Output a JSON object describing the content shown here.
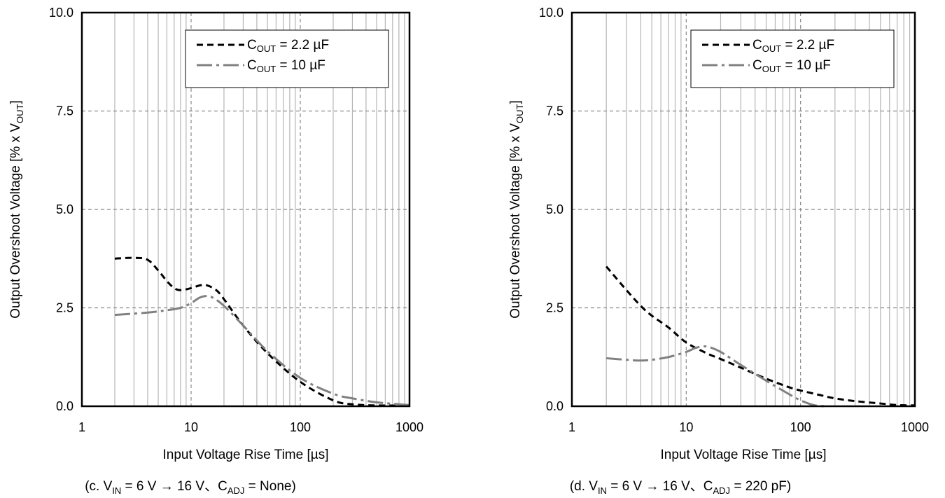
{
  "chart_data": [
    {
      "type": "line",
      "xscale": "log",
      "xlim": [
        1,
        1000
      ],
      "ylim": [
        0.0,
        10.0
      ],
      "xticks": [
        "1",
        "10",
        "100",
        "1000"
      ],
      "yticks": [
        "0.0",
        "2.5",
        "5.0",
        "7.5",
        "10.0"
      ],
      "xlabel": "Input Voltage Rise Time [µs]",
      "ylabel": {
        "main": "Output Overshoot Voltage [% x V",
        "sub": "OUT",
        "end": "]"
      },
      "caption": {
        "t1": "(c. V",
        "s1": "IN",
        "t2": " = 6 V → 16 V、C",
        "s2": "ADJ",
        "t3": " = None)"
      },
      "grid": "on",
      "legend_position": "top-right",
      "series": [
        {
          "name": {
            "main": "C",
            "sub": "OUT",
            "rest": " =  2.2  µF"
          },
          "style": "dash",
          "color": "#000000",
          "x": [
            2,
            3,
            4,
            5,
            6,
            7,
            8,
            10,
            12,
            14,
            17,
            20,
            30,
            50,
            100,
            200,
            300,
            500,
            1000
          ],
          "y": [
            3.75,
            3.77,
            3.72,
            3.45,
            3.18,
            3.0,
            2.95,
            3.0,
            3.07,
            3.07,
            2.95,
            2.72,
            2.05,
            1.35,
            0.62,
            0.15,
            0.05,
            0.02,
            0.02
          ]
        },
        {
          "name": {
            "main": "C",
            "sub": "OUT",
            "rest": " = 10 µF"
          },
          "style": "dashdot",
          "color": "#808080",
          "x": [
            2,
            4,
            6,
            8,
            10,
            12,
            14,
            16,
            20,
            30,
            50,
            100,
            200,
            300,
            500,
            800,
            1000
          ],
          "y": [
            2.32,
            2.38,
            2.44,
            2.5,
            2.62,
            2.76,
            2.8,
            2.75,
            2.55,
            2.05,
            1.4,
            0.72,
            0.32,
            0.2,
            0.1,
            0.05,
            0.03
          ]
        }
      ]
    },
    {
      "type": "line",
      "xscale": "log",
      "xlim": [
        1,
        1000
      ],
      "ylim": [
        0.0,
        10.0
      ],
      "xticks": [
        "1",
        "10",
        "100",
        "1000"
      ],
      "yticks": [
        "0.0",
        "2.5",
        "5.0",
        "7.5",
        "10.0"
      ],
      "xlabel": "Input Voltage Rise Time [µs]",
      "ylabel": {
        "main": "Output Overshoot Voltage [% x V",
        "sub": "OUT",
        "end": "]"
      },
      "caption": {
        "t1": "(d. V",
        "s1": "IN",
        "t2": " = 6 V → 16 V、C",
        "s2": "ADJ",
        "t3": " = 220 pF)"
      },
      "grid": "on",
      "legend_position": "top-right",
      "series": [
        {
          "name": {
            "main": "C",
            "sub": "OUT",
            "rest": " =  2.2  µF"
          },
          "style": "dash",
          "color": "#000000",
          "x": [
            2,
            3,
            4,
            5,
            7,
            10,
            15,
            20,
            30,
            50,
            80,
            100,
            150,
            200,
            300,
            500,
            700,
            1000
          ],
          "y": [
            3.55,
            2.95,
            2.55,
            2.3,
            2.0,
            1.62,
            1.35,
            1.2,
            0.98,
            0.7,
            0.48,
            0.4,
            0.28,
            0.2,
            0.13,
            0.07,
            0.03,
            0.02
          ]
        },
        {
          "name": {
            "main": "C",
            "sub": "OUT",
            "rest": " = 10 µF"
          },
          "style": "dashdot",
          "color": "#808080",
          "x": [
            2,
            3,
            4,
            5,
            7,
            10,
            12,
            14,
            16,
            20,
            30,
            50,
            80,
            100,
            130,
            160
          ],
          "y": [
            1.22,
            1.18,
            1.16,
            1.18,
            1.25,
            1.38,
            1.48,
            1.52,
            1.5,
            1.38,
            1.05,
            0.65,
            0.3,
            0.15,
            0.03,
            0.0
          ]
        }
      ]
    }
  ]
}
